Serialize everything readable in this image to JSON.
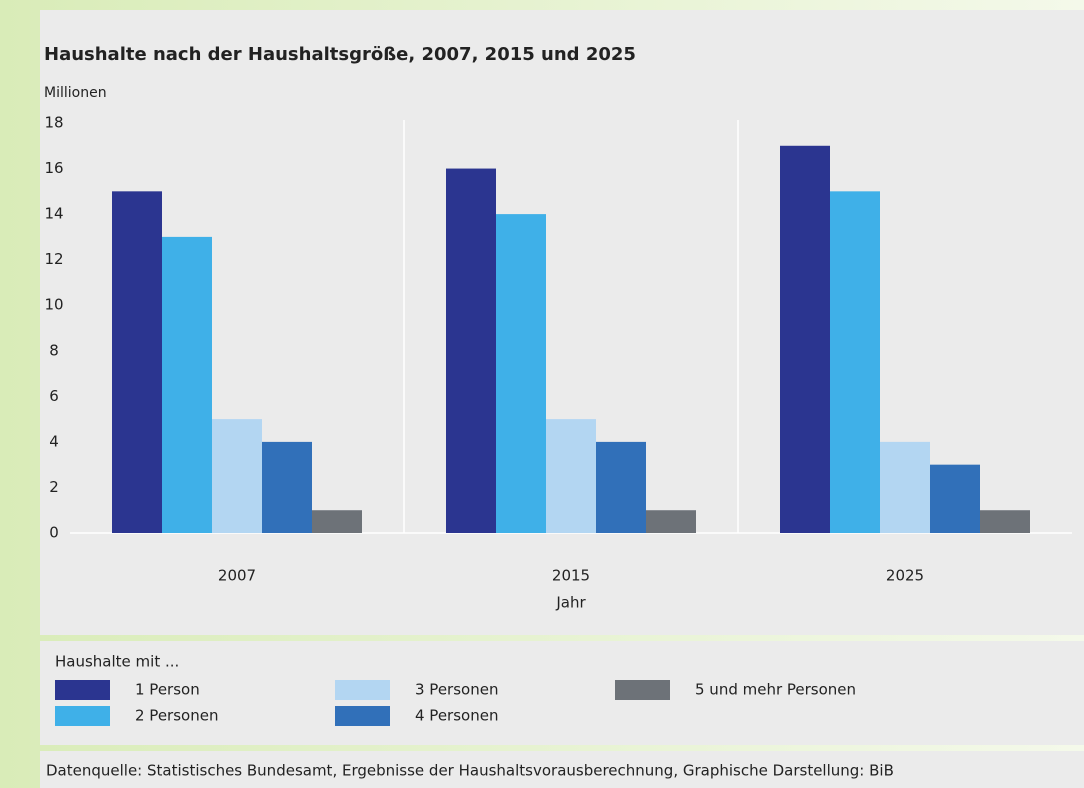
{
  "chart_data": {
    "type": "bar",
    "title": "Haushalte nach der Haushaltsgröße, 2007, 2015 und 2025",
    "y_label": "Millionen",
    "x_label": "Jahr",
    "legend_title": "Haushalte mit ...",
    "source": "Datenquelle: Statistisches Bundesamt, Ergebnisse der Haushaltsvorausberechnung, Graphische Darstellung: BiB",
    "categories": [
      "2007",
      "2015",
      "2025"
    ],
    "series": [
      {
        "name": "1 Person",
        "color": "#2b3590",
        "values": [
          15,
          16,
          17
        ]
      },
      {
        "name": "2 Personen",
        "color": "#3fb0e8",
        "values": [
          13,
          14,
          15
        ]
      },
      {
        "name": "3 Personen",
        "color": "#b3d6f2",
        "values": [
          5,
          5,
          4
        ]
      },
      {
        "name": "4 Personen",
        "color": "#3170b9",
        "values": [
          4,
          4,
          3
        ]
      },
      {
        "name": "5 und mehr Personen",
        "color": "#6d7278",
        "values": [
          1,
          1,
          1
        ]
      }
    ],
    "ylim": [
      0,
      18
    ],
    "yticks": [
      0,
      2,
      4,
      6,
      8,
      10,
      12,
      14,
      16,
      18
    ],
    "grid": false
  }
}
